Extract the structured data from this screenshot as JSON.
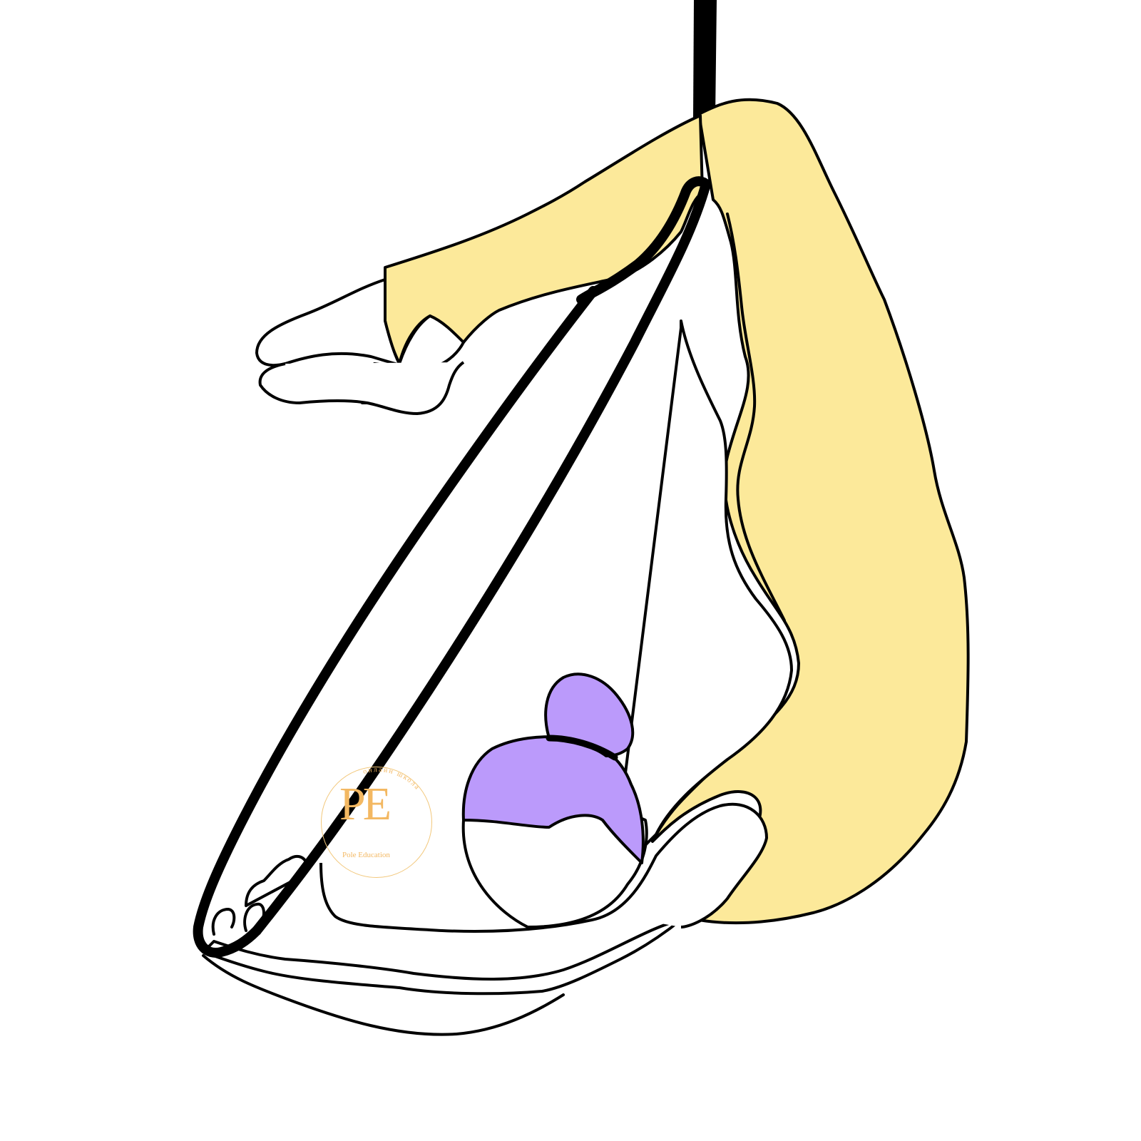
{
  "illustration": {
    "colors": {
      "outline": "#000000",
      "suit": "#FCE99A",
      "hair": "#BB9AFB",
      "skin": "#FFFFFF",
      "apparatus": "#000000"
    }
  },
  "watermark": {
    "monogram": "PE",
    "name": "Pole Education",
    "arc_text": "онлайн школа",
    "color": "#F3B862"
  }
}
